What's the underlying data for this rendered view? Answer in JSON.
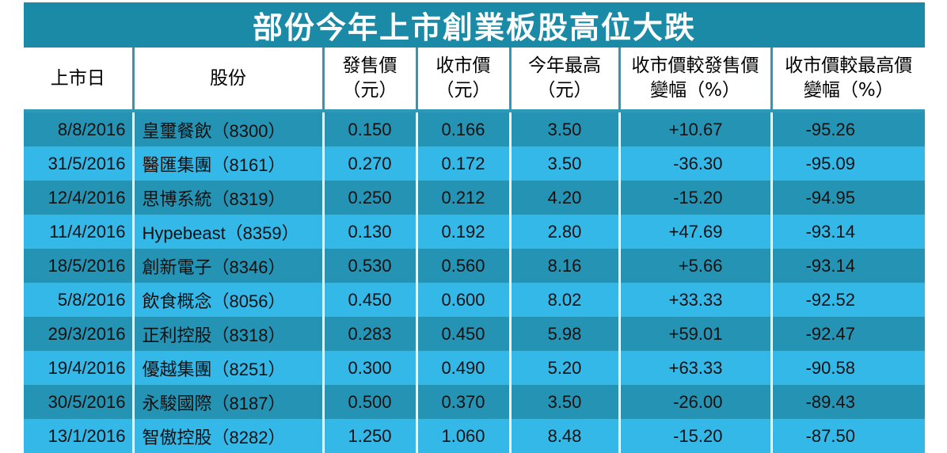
{
  "title": "部份今年上市創業板股高位大跌",
  "headers": {
    "date": [
      "上市日"
    ],
    "stock": [
      "股份"
    ],
    "ipo_price": [
      "發售價",
      "（元）"
    ],
    "close_price": [
      "收市價",
      "（元）"
    ],
    "year_high": [
      "今年最高",
      "（元）"
    ],
    "chg_vs_ipo": [
      "收市價較發售價",
      "變幅（%）"
    ],
    "chg_vs_high": [
      "收市價較最高價",
      "變幅（%）"
    ]
  },
  "rows": [
    {
      "date": "8/8/2016",
      "stock": "皇璽餐飲（8300）",
      "ipo_price": "0.150",
      "close_price": "0.166",
      "year_high": "3.50",
      "chg_vs_ipo": "+10.67",
      "chg_vs_high": "-95.26"
    },
    {
      "date": "31/5/2016",
      "stock": "醫匯集團（8161）",
      "ipo_price": "0.270",
      "close_price": "0.172",
      "year_high": "3.50",
      "chg_vs_ipo": "-36.30",
      "chg_vs_high": "-95.09"
    },
    {
      "date": "12/4/2016",
      "stock": "思博系統（8319）",
      "ipo_price": "0.250",
      "close_price": "0.212",
      "year_high": "4.20",
      "chg_vs_ipo": "-15.20",
      "chg_vs_high": "-94.95"
    },
    {
      "date": "11/4/2016",
      "stock": "Hypebeast（8359）",
      "ipo_price": "0.130",
      "close_price": "0.192",
      "year_high": "2.80",
      "chg_vs_ipo": "+47.69",
      "chg_vs_high": "-93.14"
    },
    {
      "date": "18/5/2016",
      "stock": "創新電子（8346）",
      "ipo_price": "0.530",
      "close_price": "0.560",
      "year_high": "8.16",
      "chg_vs_ipo": "+5.66",
      "chg_vs_high": "-93.14"
    },
    {
      "date": "5/8/2016",
      "stock": "飲食概念（8056）",
      "ipo_price": "0.450",
      "close_price": "0.600",
      "year_high": "8.02",
      "chg_vs_ipo": "+33.33",
      "chg_vs_high": "-92.52"
    },
    {
      "date": "29/3/2016",
      "stock": "正利控股（8318）",
      "ipo_price": "0.283",
      "close_price": "0.450",
      "year_high": "5.98",
      "chg_vs_ipo": "+59.01",
      "chg_vs_high": "-92.47"
    },
    {
      "date": "19/4/2016",
      "stock": "優越集團（8251）",
      "ipo_price": "0.300",
      "close_price": "0.490",
      "year_high": "5.20",
      "chg_vs_ipo": "+63.33",
      "chg_vs_high": "-90.58"
    },
    {
      "date": "30/5/2016",
      "stock": "永駿國際（8187）",
      "ipo_price": "0.500",
      "close_price": "0.370",
      "year_high": "3.50",
      "chg_vs_ipo": "-26.00",
      "chg_vs_high": "-89.43"
    },
    {
      "date": "13/1/2016",
      "stock": "智傲控股（8282）",
      "ipo_price": "1.250",
      "close_price": "1.060",
      "year_high": "8.48",
      "chg_vs_ipo": "-15.20",
      "chg_vs_high": "-87.50"
    }
  ],
  "colors": {
    "title_bg": "#1a8aa6",
    "row_dark": "#2593b3",
    "row_light": "#34b8e8",
    "header_bg": "#ffffff"
  }
}
